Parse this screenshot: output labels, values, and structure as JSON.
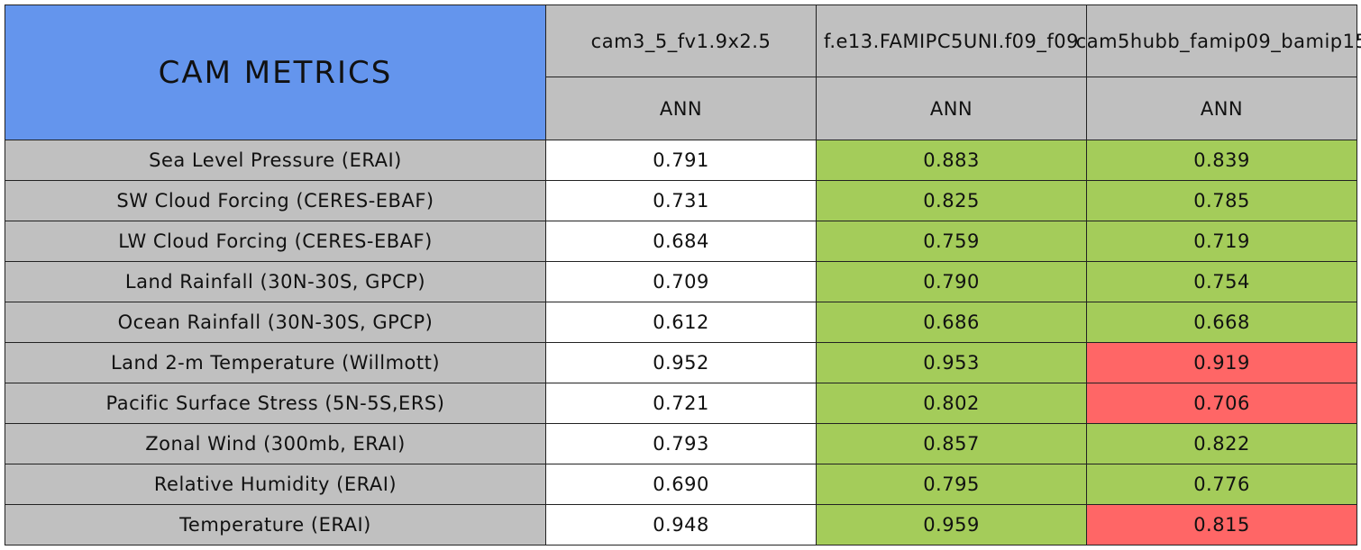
{
  "header": {
    "title": "CAM METRICS",
    "columns": [
      "cam3_5_fv1.9x2.5",
      "f.e13.FAMIPC5UNI.f09_f09",
      "cam5hubb_famip09_bamip15"
    ],
    "seasons": [
      "ANN",
      "ANN",
      "ANN"
    ]
  },
  "table": {
    "rows": [
      {
        "label": "Sea Level Pressure (ERAI)",
        "values": [
          "0.791",
          "0.883",
          "0.839"
        ],
        "colors": [
          "#ffffff",
          "#a4cc5a",
          "#a4cc5a"
        ]
      },
      {
        "label": "SW Cloud Forcing (CERES-EBAF)",
        "values": [
          "0.731",
          "0.825",
          "0.785"
        ],
        "colors": [
          "#ffffff",
          "#a4cc5a",
          "#a4cc5a"
        ]
      },
      {
        "label": "LW Cloud Forcing (CERES-EBAF)",
        "values": [
          "0.684",
          "0.759",
          "0.719"
        ],
        "colors": [
          "#ffffff",
          "#a4cc5a",
          "#a4cc5a"
        ]
      },
      {
        "label": "Land Rainfall (30N-30S, GPCP)",
        "values": [
          "0.709",
          "0.790",
          "0.754"
        ],
        "colors": [
          "#ffffff",
          "#a4cc5a",
          "#a4cc5a"
        ]
      },
      {
        "label": "Ocean Rainfall (30N-30S, GPCP)",
        "values": [
          "0.612",
          "0.686",
          "0.668"
        ],
        "colors": [
          "#ffffff",
          "#a4cc5a",
          "#a4cc5a"
        ]
      },
      {
        "label": "Land 2-m Temperature (Willmott)",
        "values": [
          "0.952",
          "0.953",
          "0.919"
        ],
        "colors": [
          "#ffffff",
          "#a4cc5a",
          "#ff6666"
        ]
      },
      {
        "label": "Pacific Surface Stress (5N-5S,ERS)",
        "values": [
          "0.721",
          "0.802",
          "0.706"
        ],
        "colors": [
          "#ffffff",
          "#a4cc5a",
          "#ff6666"
        ]
      },
      {
        "label": "Zonal Wind (300mb, ERAI)",
        "values": [
          "0.793",
          "0.857",
          "0.822"
        ],
        "colors": [
          "#ffffff",
          "#a4cc5a",
          "#a4cc5a"
        ]
      },
      {
        "label": "Relative Humidity (ERAI)",
        "values": [
          "0.690",
          "0.795",
          "0.776"
        ],
        "colors": [
          "#ffffff",
          "#a4cc5a",
          "#a4cc5a"
        ]
      },
      {
        "label": "Temperature (ERAI)",
        "values": [
          "0.948",
          "0.959",
          "0.815"
        ],
        "colors": [
          "#ffffff",
          "#a4cc5a",
          "#ff6666"
        ]
      }
    ]
  }
}
